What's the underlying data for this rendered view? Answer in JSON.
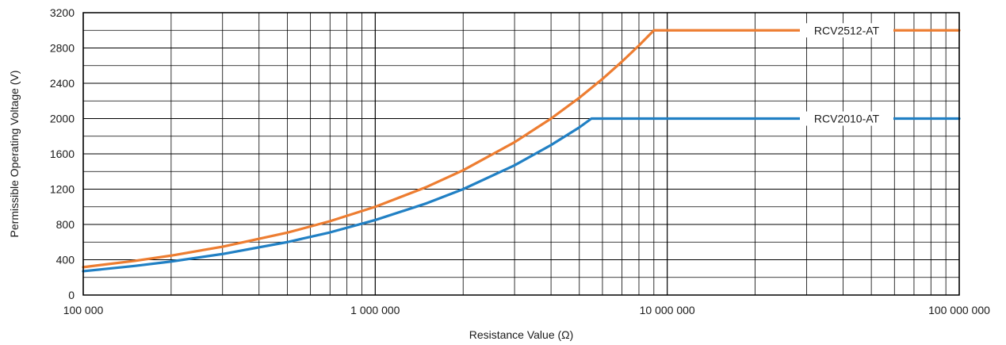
{
  "chart_data": {
    "type": "line",
    "xlabel": "Resistance Value (Ω)",
    "ylabel": "Permissible Operating Voltage (V)",
    "xscale": "log",
    "xlim": [
      100000,
      100000000
    ],
    "ylim": [
      0,
      3200
    ],
    "grid": true,
    "x_ticks": [
      100000,
      1000000,
      10000000,
      100000000
    ],
    "x_tick_labels": [
      "100 000",
      "1 000 000",
      "10 000 000",
      "100 000 000"
    ],
    "y_ticks": [
      0,
      400,
      800,
      1200,
      1600,
      2000,
      2400,
      2800,
      3200
    ],
    "y_tick_labels": [
      "0",
      "400",
      "800",
      "1200",
      "1600",
      "2000",
      "2400",
      "2800",
      "3200"
    ],
    "series": [
      {
        "name": "RCV2512-AT",
        "color": "#ed7d31",
        "points": [
          [
            100000,
            316
          ],
          [
            150000,
            387
          ],
          [
            200000,
            447
          ],
          [
            300000,
            548
          ],
          [
            500000,
            707
          ],
          [
            700000,
            837
          ],
          [
            1000000,
            1000
          ],
          [
            1500000,
            1225
          ],
          [
            2000000,
            1414
          ],
          [
            3000000,
            1732
          ],
          [
            4000000,
            2000
          ],
          [
            5000000,
            2236
          ],
          [
            6000000,
            2449
          ],
          [
            7000000,
            2646
          ],
          [
            8000000,
            2828
          ],
          [
            9000000,
            3000
          ],
          [
            100000000,
            3000
          ]
        ]
      },
      {
        "name": "RCV2010-AT",
        "color": "#2180c4",
        "points": [
          [
            100000,
            270
          ],
          [
            150000,
            330
          ],
          [
            200000,
            380
          ],
          [
            300000,
            465
          ],
          [
            500000,
            600
          ],
          [
            700000,
            710
          ],
          [
            1000000,
            850
          ],
          [
            1500000,
            1040
          ],
          [
            2000000,
            1200
          ],
          [
            3000000,
            1470
          ],
          [
            4000000,
            1700
          ],
          [
            5000000,
            1900
          ],
          [
            5500000,
            2000
          ],
          [
            100000000,
            2000
          ]
        ]
      }
    ],
    "annotations": [
      {
        "text": "RCV2512-AT",
        "series": 0
      },
      {
        "text": "RCV2010-AT",
        "series": 1
      }
    ]
  }
}
